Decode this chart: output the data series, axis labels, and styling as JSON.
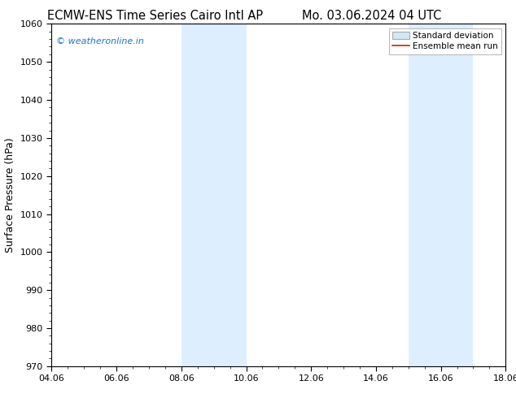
{
  "title_left": "ECMW-ENS Time Series Cairo Intl AP",
  "title_right": "Mo. 03.06.2024 04 UTC",
  "ylabel": "Surface Pressure (hPa)",
  "ylim": [
    970,
    1060
  ],
  "yticks": [
    970,
    980,
    990,
    1000,
    1010,
    1020,
    1030,
    1040,
    1050,
    1060
  ],
  "xlim_num": [
    0,
    14
  ],
  "xtick_labels": [
    "04.06",
    "06.06",
    "08.06",
    "10.06",
    "12.06",
    "14.06",
    "16.06",
    "18.06"
  ],
  "xtick_positions": [
    0,
    2,
    4,
    6,
    8,
    10,
    12,
    14
  ],
  "shaded_bands": [
    {
      "xmin": 4,
      "xmax": 6
    },
    {
      "xmin": 11,
      "xmax": 13
    }
  ],
  "band_color": "#ddeeff",
  "watermark_text": "© weatheronline.in",
  "watermark_color": "#1a75cc",
  "legend_std_color": "#d0e8f8",
  "legend_std_edge": "#aaaaaa",
  "legend_mean_color": "#cc2200",
  "background_color": "#ffffff",
  "title_fontsize": 10.5,
  "ylabel_fontsize": 9,
  "tick_fontsize": 8,
  "watermark_fontsize": 8,
  "legend_fontsize": 7.5
}
